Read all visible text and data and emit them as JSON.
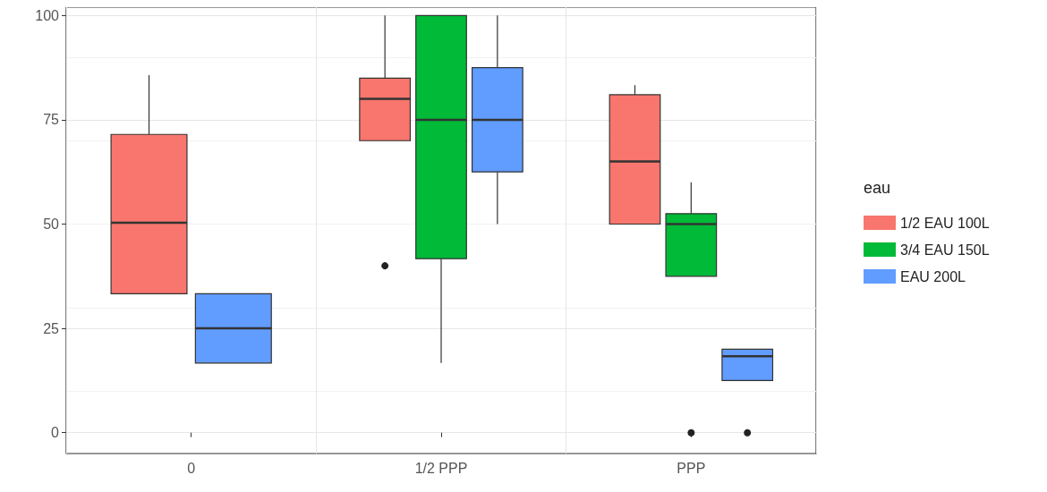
{
  "chart_data": {
    "type": "box",
    "legend_title": "eau",
    "categories": [
      "0",
      "1/2 PPP",
      "PPP"
    ],
    "ylim": [
      -5,
      102
    ],
    "yticks": [
      0,
      25,
      50,
      75,
      100
    ],
    "grid": true,
    "legend": "right",
    "series": [
      {
        "name": "1/2 EAU 100L",
        "color": "#f8766d",
        "boxes": [
          {
            "low": 33.3,
            "q1": 33.3,
            "median": 50.3,
            "q3": 71.5,
            "high": 85.7
          },
          {
            "low": 70,
            "q1": 70,
            "median": 80,
            "q3": 85,
            "high": 100,
            "outliers": [
              40
            ]
          },
          {
            "low": 50,
            "q1": 50,
            "median": 65,
            "q3": 81,
            "high": 83.3
          }
        ]
      },
      {
        "name": "3/4 EAU 150L",
        "color": "#00ba38",
        "boxes": [
          null,
          {
            "low": 16.7,
            "q1": 41.7,
            "median": 75,
            "q3": 100,
            "high": 100
          },
          {
            "low": 37.5,
            "q1": 37.5,
            "median": 50,
            "q3": 52.5,
            "high": 60,
            "outliers": [
              0
            ]
          }
        ]
      },
      {
        "name": "EAU 200L",
        "color": "#619cff",
        "boxes": [
          {
            "low": 16.7,
            "q1": 16.7,
            "median": 25,
            "q3": 33.3,
            "high": 33.3
          },
          {
            "low": 50,
            "q1": 62.5,
            "median": 75,
            "q3": 87.5,
            "high": 100
          },
          {
            "low": 12.5,
            "q1": 12.5,
            "median": 18.3,
            "q3": 20,
            "high": 20,
            "outliers": [
              0
            ]
          }
        ]
      }
    ]
  }
}
